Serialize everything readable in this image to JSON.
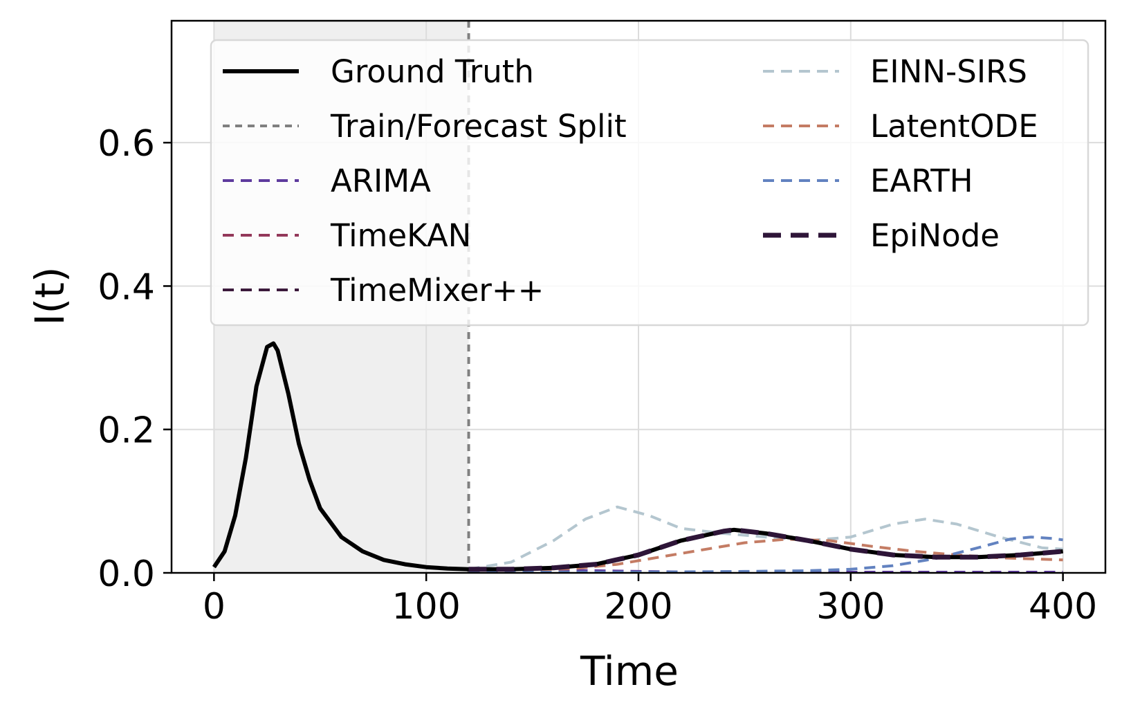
{
  "chart_data": {
    "type": "line",
    "title": "",
    "xlabel": "Time",
    "ylabel": "I(t)",
    "xlim": [
      -20,
      420
    ],
    "ylim": [
      0,
      0.77
    ],
    "xticks": [
      0,
      100,
      200,
      300,
      400
    ],
    "yticks": [
      0.0,
      0.2,
      0.4,
      0.6
    ],
    "xtick_labels": [
      "0",
      "100",
      "200",
      "300",
      "400"
    ],
    "ytick_labels": [
      "0.0",
      "0.2",
      "0.4",
      "0.6"
    ],
    "grid": true,
    "legend_position": "top-right",
    "legend_columns": 2,
    "shaded_region": {
      "x0": 0,
      "x1": 120,
      "color": "#efefef"
    },
    "split_line": {
      "x": 120
    },
    "series": [
      {
        "name": "Ground Truth",
        "color": "#000000",
        "style": "solid",
        "width": 6,
        "x": [
          0,
          5,
          10,
          15,
          20,
          25,
          28,
          30,
          35,
          40,
          45,
          50,
          60,
          70,
          80,
          90,
          100,
          110,
          120,
          140,
          160,
          180,
          200,
          220,
          240,
          245,
          260,
          280,
          300,
          320,
          340,
          360,
          380,
          400
        ],
        "y": [
          0.008,
          0.03,
          0.08,
          0.16,
          0.26,
          0.315,
          0.32,
          0.31,
          0.25,
          0.18,
          0.13,
          0.09,
          0.05,
          0.03,
          0.018,
          0.012,
          0.008,
          0.006,
          0.005,
          0.005,
          0.007,
          0.012,
          0.025,
          0.045,
          0.058,
          0.06,
          0.055,
          0.045,
          0.033,
          0.025,
          0.022,
          0.022,
          0.025,
          0.03
        ]
      },
      {
        "name": "Train/Forecast Split",
        "color": "#808080",
        "style": "dashed-short",
        "width": 4,
        "x": [],
        "y": []
      },
      {
        "name": "ARIMA",
        "color": "#5e3b9e",
        "style": "dashed",
        "width": 4,
        "x": [
          120,
          150,
          180,
          200,
          230,
          260,
          300,
          350,
          400
        ],
        "y": [
          0.005,
          0.004,
          0.003,
          0.002,
          0.001,
          0.001,
          0.001,
          0.001,
          0.001
        ]
      },
      {
        "name": "TimeKAN",
        "color": "#93385a",
        "style": "dashed",
        "width": 4,
        "x": [
          120,
          140,
          160,
          180,
          200,
          220,
          240,
          245,
          260,
          280,
          300,
          320,
          340,
          360,
          380,
          400
        ],
        "y": [
          0.005,
          0.005,
          0.007,
          0.012,
          0.025,
          0.045,
          0.058,
          0.06,
          0.055,
          0.045,
          0.033,
          0.025,
          0.022,
          0.022,
          0.025,
          0.03
        ]
      },
      {
        "name": "TimeMixer++",
        "color": "#3b1a3b",
        "style": "dashed",
        "width": 4,
        "x": [
          120,
          140,
          160,
          180,
          200,
          220,
          240,
          245,
          260,
          280,
          300,
          320,
          340,
          360,
          380,
          400
        ],
        "y": [
          0.005,
          0.005,
          0.007,
          0.012,
          0.025,
          0.045,
          0.058,
          0.06,
          0.055,
          0.045,
          0.033,
          0.025,
          0.022,
          0.022,
          0.025,
          0.03
        ]
      },
      {
        "name": "EINN-SIRS",
        "color": "#b4c6cf",
        "style": "dashed",
        "width": 4,
        "x": [
          120,
          140,
          160,
          175,
          190,
          205,
          220,
          240,
          260,
          280,
          300,
          320,
          335,
          350,
          370,
          390,
          400
        ],
        "y": [
          0.005,
          0.015,
          0.045,
          0.075,
          0.092,
          0.08,
          0.062,
          0.055,
          0.05,
          0.045,
          0.05,
          0.068,
          0.075,
          0.068,
          0.05,
          0.035,
          0.033
        ]
      },
      {
        "name": "LatentODE",
        "color": "#c47c64",
        "style": "dashed",
        "width": 4,
        "x": [
          120,
          150,
          170,
          190,
          210,
          230,
          250,
          270,
          290,
          310,
          330,
          350,
          370,
          390,
          400
        ],
        "y": [
          0.004,
          0.004,
          0.006,
          0.012,
          0.022,
          0.032,
          0.042,
          0.047,
          0.045,
          0.037,
          0.03,
          0.025,
          0.021,
          0.019,
          0.018
        ]
      },
      {
        "name": "EARTH",
        "color": "#6282c0",
        "style": "dashed",
        "width": 4,
        "x": [
          120,
          200,
          250,
          280,
          300,
          320,
          340,
          360,
          375,
          385,
          395,
          400
        ],
        "y": [
          0.001,
          0.001,
          0.002,
          0.003,
          0.005,
          0.01,
          0.02,
          0.035,
          0.047,
          0.05,
          0.048,
          0.046
        ]
      },
      {
        "name": "EpiNode",
        "color": "#2e1538",
        "style": "dashed-long",
        "width": 7,
        "x": [
          120,
          140,
          160,
          180,
          200,
          220,
          240,
          245,
          260,
          280,
          300,
          320,
          340,
          360,
          380,
          400
        ],
        "y": [
          0.005,
          0.005,
          0.007,
          0.012,
          0.025,
          0.045,
          0.058,
          0.06,
          0.055,
          0.045,
          0.033,
          0.025,
          0.022,
          0.022,
          0.025,
          0.03
        ]
      }
    ]
  }
}
